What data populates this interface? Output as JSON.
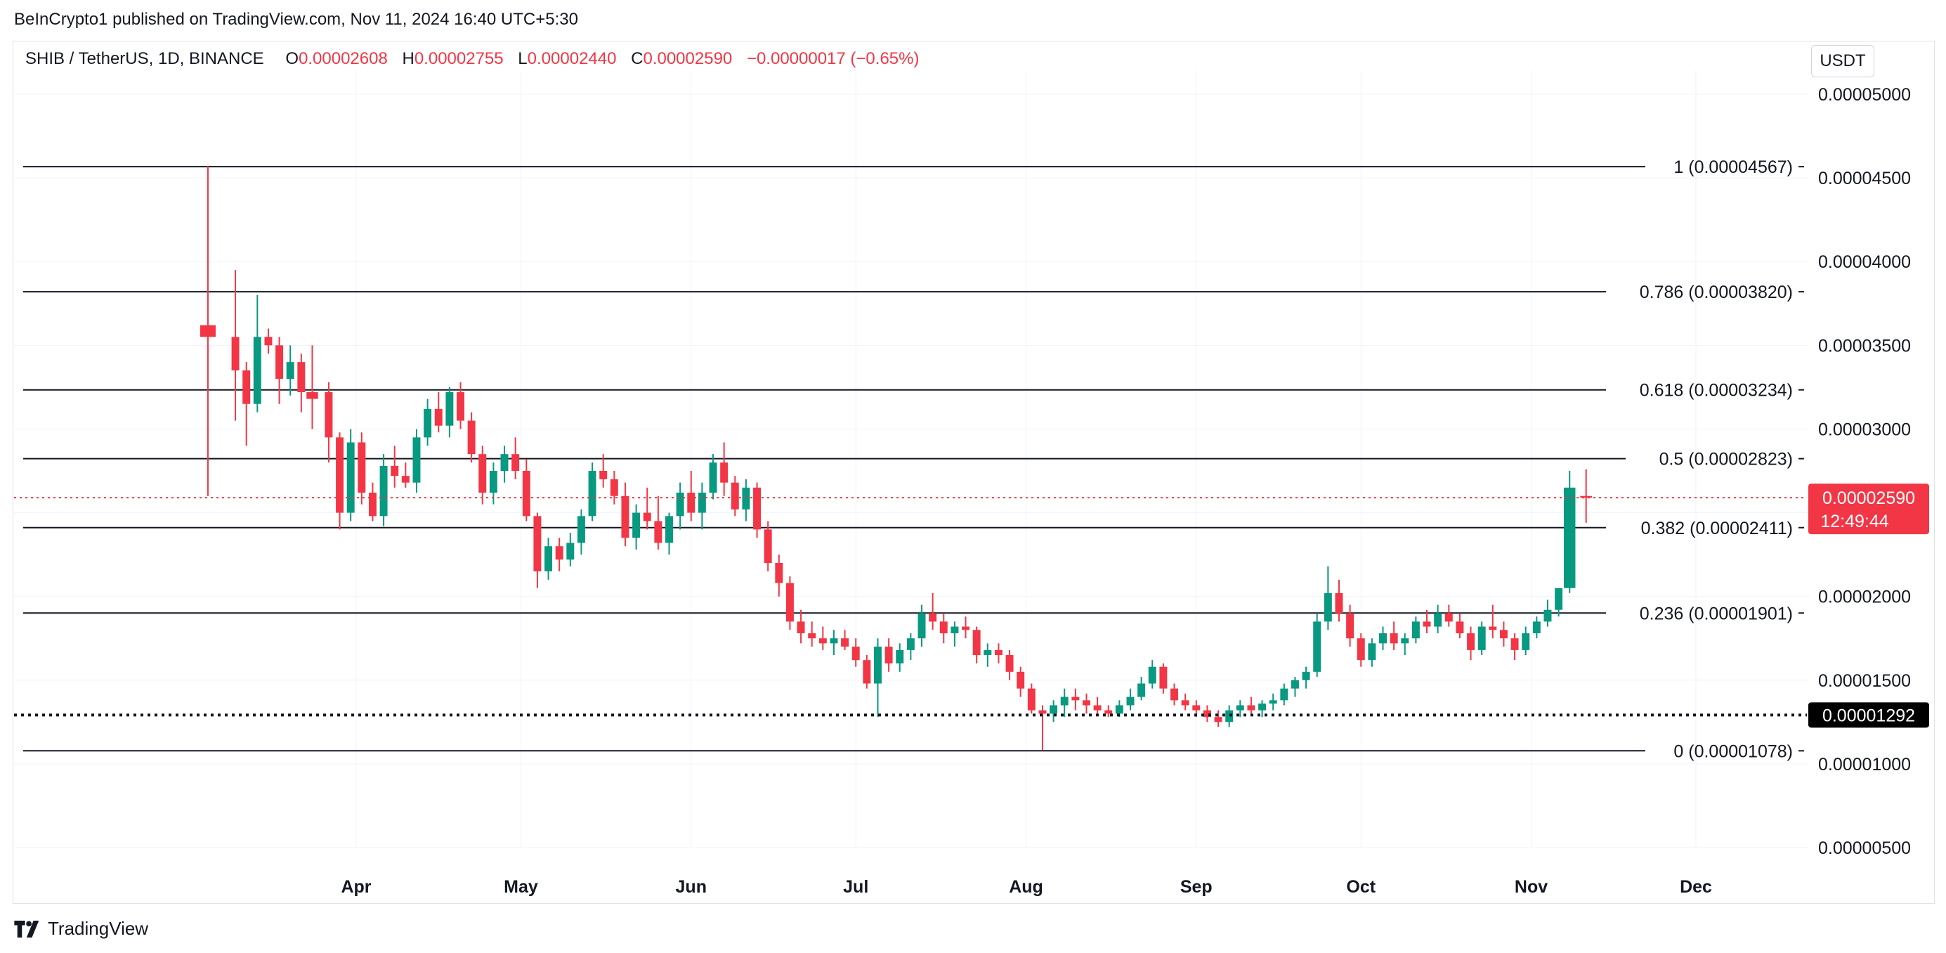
{
  "header": {
    "publisher_line": "BeInCrypto1 published on TradingView.com, Nov 11, 2024 16:40 UTC+5:30"
  },
  "legend": {
    "symbol": "SHIB / TetherUS, 1D, BINANCE",
    "open_label": "O",
    "open": "0.00002608",
    "high_label": "H",
    "high": "0.00002755",
    "low_label": "L",
    "low": "0.00002440",
    "close_label": "C",
    "close": "0.00002590",
    "change": "−0.00000017 (−0.65%)"
  },
  "currency_button": "USDT",
  "footer": {
    "brand": "TradingView"
  },
  "colors": {
    "up": "#089981",
    "down": "#f23645",
    "grid": "#f0f3fa",
    "fib_line": "#131722"
  },
  "chart_data": {
    "type": "candlestick",
    "title": "SHIB / TetherUS, 1D, BINANCE",
    "ylim": [
      3.4e-06,
      5.4e-06
    ],
    "y_ticks": [
      "0.00005000",
      "0.00004500",
      "0.00004000",
      "0.00003500",
      "0.00003000",
      "0.00002500",
      "0.00002000",
      "0.00001500",
      "0.00001000",
      "0.00000500"
    ],
    "y_tick_values": [
      5e-05,
      4.5e-05,
      4e-05,
      3.5e-05,
      3e-05,
      2.5e-05,
      2e-05,
      1.5e-05,
      1e-05,
      5e-06
    ],
    "x_ticks": [
      "Apr",
      "May",
      "Jun",
      "Jul",
      "Aug",
      "Sep",
      "Oct",
      "Nov",
      "Dec"
    ],
    "x_tick_dates": [
      "2024-04-01",
      "2024-05-01",
      "2024-06-01",
      "2024-07-01",
      "2024-08-01",
      "2024-09-01",
      "2024-10-01",
      "2024-11-01",
      "2024-12-01"
    ],
    "fib_levels": [
      {
        "ratio": "1",
        "value": 4.567e-05,
        "label": "1 (0.00004567)"
      },
      {
        "ratio": "0.786",
        "value": 3.82e-05,
        "label": "0.786 (0.00003820)"
      },
      {
        "ratio": "0.618",
        "value": 3.234e-05,
        "label": "0.618 (0.00003234)"
      },
      {
        "ratio": "0.5",
        "value": 2.823e-05,
        "label": "0.5 (0.00002823)"
      },
      {
        "ratio": "0.382",
        "value": 2.411e-05,
        "label": "0.382 (0.00002411)"
      },
      {
        "ratio": "0.236",
        "value": 1.901e-05,
        "label": "0.236 (0.00001901)"
      },
      {
        "ratio": "0",
        "value": 1.078e-05,
        "label": "0 (0.00001078)"
      }
    ],
    "current_price": {
      "value": 2.59e-05,
      "label": "0.00002590",
      "countdown": "12:49:44"
    },
    "support_line": {
      "value": 1.292e-05,
      "label": "0.00001292"
    },
    "candles": [
      [
        "2024-03-05",
        3.62e-05,
        4.57e-05,
        2.6e-05,
        3.55e-05
      ],
      [
        "2024-03-10",
        3.55e-05,
        3.95e-05,
        3.05e-05,
        3.35e-05
      ],
      [
        "2024-03-12",
        3.35e-05,
        3.4e-05,
        2.9e-05,
        3.15e-05
      ],
      [
        "2024-03-14",
        3.15e-05,
        3.8e-05,
        3.1e-05,
        3.55e-05
      ],
      [
        "2024-03-16",
        3.55e-05,
        3.6e-05,
        3.45e-05,
        3.5e-05
      ],
      [
        "2024-03-18",
        3.5e-05,
        3.55e-05,
        3.15e-05,
        3.3e-05
      ],
      [
        "2024-03-20",
        3.3e-05,
        3.5e-05,
        3.2e-05,
        3.4e-05
      ],
      [
        "2024-03-22",
        3.4e-05,
        3.45e-05,
        3.1e-05,
        3.22e-05
      ],
      [
        "2024-03-24",
        3.22e-05,
        3.5e-05,
        3e-05,
        3.18e-05
      ],
      [
        "2024-03-27",
        3.22e-05,
        3.28e-05,
        2.8e-05,
        2.95e-05
      ],
      [
        "2024-03-29",
        2.95e-05,
        2.98e-05,
        2.4e-05,
        2.5e-05
      ],
      [
        "2024-03-31",
        2.5e-05,
        3e-05,
        2.45e-05,
        2.92e-05
      ],
      [
        "2024-04-02",
        2.92e-05,
        2.98e-05,
        2.55e-05,
        2.62e-05
      ],
      [
        "2024-04-04",
        2.62e-05,
        2.68e-05,
        2.45e-05,
        2.48e-05
      ],
      [
        "2024-04-06",
        2.48e-05,
        2.85e-05,
        2.42e-05,
        2.78e-05
      ],
      [
        "2024-04-08",
        2.78e-05,
        2.9e-05,
        2.65e-05,
        2.72e-05
      ],
      [
        "2024-04-10",
        2.72e-05,
        2.8e-05,
        2.65e-05,
        2.68e-05
      ],
      [
        "2024-04-12",
        2.68e-05,
        3e-05,
        2.62e-05,
        2.95e-05
      ],
      [
        "2024-04-14",
        2.95e-05,
        3.18e-05,
        2.9e-05,
        3.12e-05
      ],
      [
        "2024-04-16",
        3.12e-05,
        3.22e-05,
        2.98e-05,
        3.02e-05
      ],
      [
        "2024-04-18",
        3.02e-05,
        3.25e-05,
        2.95e-05,
        3.22e-05
      ],
      [
        "2024-04-20",
        3.22e-05,
        3.28e-05,
        3e-05,
        3.05e-05
      ],
      [
        "2024-04-22",
        3.05e-05,
        3.1e-05,
        2.8e-05,
        2.85e-05
      ],
      [
        "2024-04-24",
        2.85e-05,
        2.9e-05,
        2.55e-05,
        2.62e-05
      ],
      [
        "2024-04-26",
        2.62e-05,
        2.8e-05,
        2.55e-05,
        2.75e-05
      ],
      [
        "2024-04-28",
        2.75e-05,
        2.9e-05,
        2.68e-05,
        2.85e-05
      ],
      [
        "2024-04-30",
        2.85e-05,
        2.95e-05,
        2.7e-05,
        2.75e-05
      ],
      [
        "2024-05-02",
        2.75e-05,
        2.82e-05,
        2.45e-05,
        2.48e-05
      ],
      [
        "2024-05-04",
        2.48e-05,
        2.5e-05,
        2.05e-05,
        2.15e-05
      ],
      [
        "2024-05-06",
        2.15e-05,
        2.35e-05,
        2.1e-05,
        2.3e-05
      ],
      [
        "2024-05-08",
        2.3e-05,
        2.35e-05,
        2.15e-05,
        2.22e-05
      ],
      [
        "2024-05-10",
        2.22e-05,
        2.38e-05,
        2.18e-05,
        2.32e-05
      ],
      [
        "2024-05-12",
        2.32e-05,
        2.52e-05,
        2.25e-05,
        2.48e-05
      ],
      [
        "2024-05-14",
        2.48e-05,
        2.8e-05,
        2.45e-05,
        2.75e-05
      ],
      [
        "2024-05-16",
        2.75e-05,
        2.85e-05,
        2.65e-05,
        2.7e-05
      ],
      [
        "2024-05-18",
        2.7e-05,
        2.75e-05,
        2.55e-05,
        2.6e-05
      ],
      [
        "2024-05-20",
        2.6e-05,
        2.68e-05,
        2.3e-05,
        2.35e-05
      ],
      [
        "2024-05-22",
        2.35e-05,
        2.55e-05,
        2.28e-05,
        2.5e-05
      ],
      [
        "2024-05-24",
        2.5e-05,
        2.65e-05,
        2.4e-05,
        2.45e-05
      ],
      [
        "2024-05-26",
        2.45e-05,
        2.6e-05,
        2.28e-05,
        2.32e-05
      ],
      [
        "2024-05-28",
        2.32e-05,
        2.5e-05,
        2.25e-05,
        2.48e-05
      ],
      [
        "2024-05-30",
        2.48e-05,
        2.68e-05,
        2.4e-05,
        2.62e-05
      ],
      [
        "2024-06-01",
        2.62e-05,
        2.75e-05,
        2.45e-05,
        2.5e-05
      ],
      [
        "2024-06-03",
        2.5e-05,
        2.68e-05,
        2.4e-05,
        2.62e-05
      ],
      [
        "2024-06-05",
        2.62e-05,
        2.85e-05,
        2.58e-05,
        2.8e-05
      ],
      [
        "2024-06-07",
        2.8e-05,
        2.92e-05,
        2.6e-05,
        2.68e-05
      ],
      [
        "2024-06-09",
        2.68e-05,
        2.72e-05,
        2.48e-05,
        2.52e-05
      ],
      [
        "2024-06-11",
        2.52e-05,
        2.7e-05,
        2.45e-05,
        2.65e-05
      ],
      [
        "2024-06-13",
        2.65e-05,
        2.68e-05,
        2.35e-05,
        2.4e-05
      ],
      [
        "2024-06-15",
        2.4e-05,
        2.45e-05,
        2.15e-05,
        2.2e-05
      ],
      [
        "2024-06-17",
        2.2e-05,
        2.25e-05,
        2e-05,
        2.08e-05
      ],
      [
        "2024-06-19",
        2.08e-05,
        2.12e-05,
        1.8e-05,
        1.85e-05
      ],
      [
        "2024-06-21",
        1.85e-05,
        1.92e-05,
        1.72e-05,
        1.78e-05
      ],
      [
        "2024-06-23",
        1.78e-05,
        1.85e-05,
        1.7e-05,
        1.75e-05
      ],
      [
        "2024-06-25",
        1.75e-05,
        1.82e-05,
        1.68e-05,
        1.72e-05
      ],
      [
        "2024-06-27",
        1.72e-05,
        1.8e-05,
        1.65e-05,
        1.75e-05
      ],
      [
        "2024-06-29",
        1.75e-05,
        1.8e-05,
        1.68e-05,
        1.7e-05
      ],
      [
        "2024-07-01",
        1.7e-05,
        1.75e-05,
        1.58e-05,
        1.62e-05
      ],
      [
        "2024-07-03",
        1.62e-05,
        1.65e-05,
        1.45e-05,
        1.48e-05
      ],
      [
        "2024-07-05",
        1.48e-05,
        1.75e-05,
        1.28e-05,
        1.7e-05
      ],
      [
        "2024-07-07",
        1.7e-05,
        1.75e-05,
        1.55e-05,
        1.6e-05
      ],
      [
        "2024-07-09",
        1.6e-05,
        1.72e-05,
        1.55e-05,
        1.68e-05
      ],
      [
        "2024-07-11",
        1.68e-05,
        1.78e-05,
        1.62e-05,
        1.75e-05
      ],
      [
        "2024-07-13",
        1.75e-05,
        1.95e-05,
        1.7e-05,
        1.9e-05
      ],
      [
        "2024-07-15",
        1.9e-05,
        2.02e-05,
        1.8e-05,
        1.85e-05
      ],
      [
        "2024-07-17",
        1.85e-05,
        1.9e-05,
        1.72e-05,
        1.78e-05
      ],
      [
        "2024-07-19",
        1.78e-05,
        1.85e-05,
        1.7e-05,
        1.82e-05
      ],
      [
        "2024-07-21",
        1.82e-05,
        1.88e-05,
        1.75e-05,
        1.8e-05
      ],
      [
        "2024-07-23",
        1.8e-05,
        1.82e-05,
        1.6e-05,
        1.65e-05
      ],
      [
        "2024-07-25",
        1.65e-05,
        1.72e-05,
        1.58e-05,
        1.68e-05
      ],
      [
        "2024-07-27",
        1.68e-05,
        1.72e-05,
        1.6e-05,
        1.65e-05
      ],
      [
        "2024-07-29",
        1.65e-05,
        1.68e-05,
        1.5e-05,
        1.55e-05
      ],
      [
        "2024-07-31",
        1.55e-05,
        1.58e-05,
        1.4e-05,
        1.45e-05
      ],
      [
        "2024-08-02",
        1.45e-05,
        1.48e-05,
        1.3e-05,
        1.32e-05
      ],
      [
        "2024-08-04",
        1.32e-05,
        1.35e-05,
        1.08e-05,
        1.3e-05
      ],
      [
        "2024-08-06",
        1.3e-05,
        1.38e-05,
        1.25e-05,
        1.35e-05
      ],
      [
        "2024-08-08",
        1.35e-05,
        1.45e-05,
        1.28e-05,
        1.4e-05
      ],
      [
        "2024-08-10",
        1.4e-05,
        1.45e-05,
        1.32e-05,
        1.38e-05
      ],
      [
        "2024-08-12",
        1.38e-05,
        1.42e-05,
        1.3e-05,
        1.35e-05
      ],
      [
        "2024-08-14",
        1.35e-05,
        1.4e-05,
        1.3e-05,
        1.32e-05
      ],
      [
        "2024-08-16",
        1.32e-05,
        1.35e-05,
        1.28e-05,
        1.3e-05
      ],
      [
        "2024-08-18",
        1.3e-05,
        1.38e-05,
        1.28e-05,
        1.35e-05
      ],
      [
        "2024-08-20",
        1.35e-05,
        1.45e-05,
        1.32e-05,
        1.4e-05
      ],
      [
        "2024-08-22",
        1.4e-05,
        1.52e-05,
        1.38e-05,
        1.48e-05
      ],
      [
        "2024-08-24",
        1.48e-05,
        1.62e-05,
        1.45e-05,
        1.58e-05
      ],
      [
        "2024-08-26",
        1.58e-05,
        1.6e-05,
        1.42e-05,
        1.45e-05
      ],
      [
        "2024-08-28",
        1.45e-05,
        1.48e-05,
        1.35e-05,
        1.38e-05
      ],
      [
        "2024-08-30",
        1.38e-05,
        1.42e-05,
        1.32e-05,
        1.35e-05
      ],
      [
        "2024-09-01",
        1.35e-05,
        1.38e-05,
        1.28e-05,
        1.32e-05
      ],
      [
        "2024-09-03",
        1.32e-05,
        1.35e-05,
        1.25e-05,
        1.28e-05
      ],
      [
        "2024-09-05",
        1.28e-05,
        1.32e-05,
        1.22e-05,
        1.25e-05
      ],
      [
        "2024-09-07",
        1.25e-05,
        1.35e-05,
        1.22e-05,
        1.32e-05
      ],
      [
        "2024-09-09",
        1.32e-05,
        1.38e-05,
        1.28e-05,
        1.35e-05
      ],
      [
        "2024-09-11",
        1.35e-05,
        1.4e-05,
        1.3e-05,
        1.32e-05
      ],
      [
        "2024-09-13",
        1.32e-05,
        1.38e-05,
        1.28e-05,
        1.36e-05
      ],
      [
        "2024-09-15",
        1.36e-05,
        1.42e-05,
        1.32e-05,
        1.38e-05
      ],
      [
        "2024-09-17",
        1.38e-05,
        1.48e-05,
        1.35e-05,
        1.45e-05
      ],
      [
        "2024-09-19",
        1.45e-05,
        1.52e-05,
        1.4e-05,
        1.5e-05
      ],
      [
        "2024-09-21",
        1.5e-05,
        1.58e-05,
        1.45e-05,
        1.55e-05
      ],
      [
        "2024-09-23",
        1.55e-05,
        1.9e-05,
        1.52e-05,
        1.85e-05
      ],
      [
        "2024-09-25",
        1.85e-05,
        2.18e-05,
        1.8e-05,
        2.02e-05
      ],
      [
        "2024-09-27",
        2.02e-05,
        2.1e-05,
        1.85e-05,
        1.9e-05
      ],
      [
        "2024-09-29",
        1.9e-05,
        1.95e-05,
        1.7e-05,
        1.75e-05
      ],
      [
        "2024-10-01",
        1.75e-05,
        1.78e-05,
        1.58e-05,
        1.62e-05
      ],
      [
        "2024-10-03",
        1.62e-05,
        1.75e-05,
        1.58e-05,
        1.72e-05
      ],
      [
        "2024-10-05",
        1.72e-05,
        1.82e-05,
        1.68e-05,
        1.78e-05
      ],
      [
        "2024-10-07",
        1.78e-05,
        1.85e-05,
        1.68e-05,
        1.72e-05
      ],
      [
        "2024-10-09",
        1.72e-05,
        1.78e-05,
        1.65e-05,
        1.75e-05
      ],
      [
        "2024-10-11",
        1.75e-05,
        1.88e-05,
        1.72e-05,
        1.85e-05
      ],
      [
        "2024-10-13",
        1.85e-05,
        1.92e-05,
        1.78e-05,
        1.82e-05
      ],
      [
        "2024-10-15",
        1.82e-05,
        1.95e-05,
        1.78e-05,
        1.9e-05
      ],
      [
        "2024-10-17",
        1.9e-05,
        1.95e-05,
        1.82e-05,
        1.85e-05
      ],
      [
        "2024-10-19",
        1.85e-05,
        1.9e-05,
        1.75e-05,
        1.78e-05
      ],
      [
        "2024-10-21",
        1.78e-05,
        1.82e-05,
        1.62e-05,
        1.68e-05
      ],
      [
        "2024-10-23",
        1.68e-05,
        1.85e-05,
        1.65e-05,
        1.82e-05
      ],
      [
        "2024-10-25",
        1.82e-05,
        1.95e-05,
        1.75e-05,
        1.8e-05
      ],
      [
        "2024-10-27",
        1.8e-05,
        1.85e-05,
        1.7e-05,
        1.75e-05
      ],
      [
        "2024-10-29",
        1.75e-05,
        1.78e-05,
        1.62e-05,
        1.68e-05
      ],
      [
        "2024-10-31",
        1.68e-05,
        1.82e-05,
        1.65e-05,
        1.78e-05
      ],
      [
        "2024-11-02",
        1.78e-05,
        1.88e-05,
        1.75e-05,
        1.85e-05
      ],
      [
        "2024-11-04",
        1.85e-05,
        1.98e-05,
        1.82e-05,
        1.92e-05
      ],
      [
        "2024-11-06",
        1.92e-05,
        2.05e-05,
        1.88e-05,
        2.05e-05
      ],
      [
        "2024-11-08",
        2.05e-05,
        2.75e-05,
        2.02e-05,
        2.65e-05
      ],
      [
        "2024-11-11",
        2.6e-05,
        2.76e-05,
        2.44e-05,
        2.59e-05
      ]
    ]
  }
}
